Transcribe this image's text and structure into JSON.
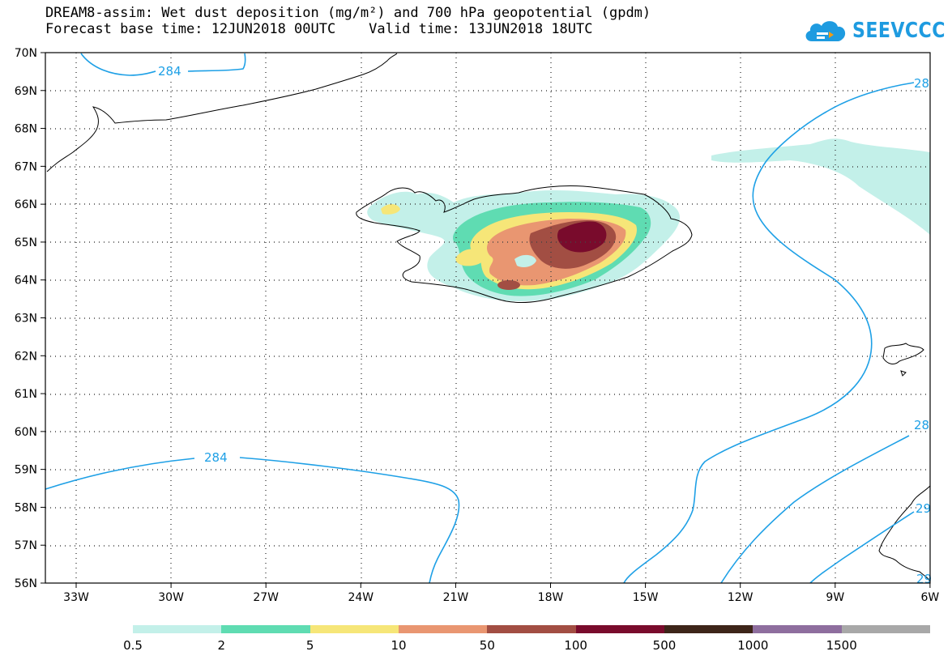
{
  "header": {
    "title_line1": "DREAM8-assim: Wet dust deposition (mg/m²) and 700 hPa geopotential (gpdm)",
    "title_line2": "Forecast base time: 12JUN2018 00UTC    Valid time: 13JUN2018 18UTC",
    "logo_text": "SEEVCCC"
  },
  "map": {
    "lat_labels": [
      "70N",
      "69N",
      "68N",
      "67N",
      "66N",
      "65N",
      "64N",
      "63N",
      "62N",
      "61N",
      "60N",
      "59N",
      "58N",
      "57N",
      "56N"
    ],
    "lon_labels": [
      "33W",
      "30W",
      "27W",
      "24W",
      "21W",
      "18W",
      "15W",
      "12W",
      "9W",
      "6W"
    ],
    "contour_labels": [
      "284",
      "284",
      "28",
      "28",
      "29",
      "29"
    ]
  },
  "colorbar": {
    "labels": [
      "0.5",
      "2",
      "5",
      "10",
      "50",
      "100",
      "500",
      "1000",
      "1500"
    ],
    "colors": [
      "#c3f0e9",
      "#5fdcb2",
      "#f6e678",
      "#e99671",
      "#a24e43",
      "#790b2c",
      "#3d2519",
      "#8e6e9e",
      "#a8a8a8"
    ]
  },
  "chart_data": {
    "type": "map",
    "variable": "Wet dust deposition (mg/m²)",
    "overlay": "700 hPa geopotential (gpdm)",
    "lat_range": [
      56,
      70
    ],
    "lon_range": [
      -33.5,
      -6
    ],
    "legend_placement": "bottom"
  }
}
